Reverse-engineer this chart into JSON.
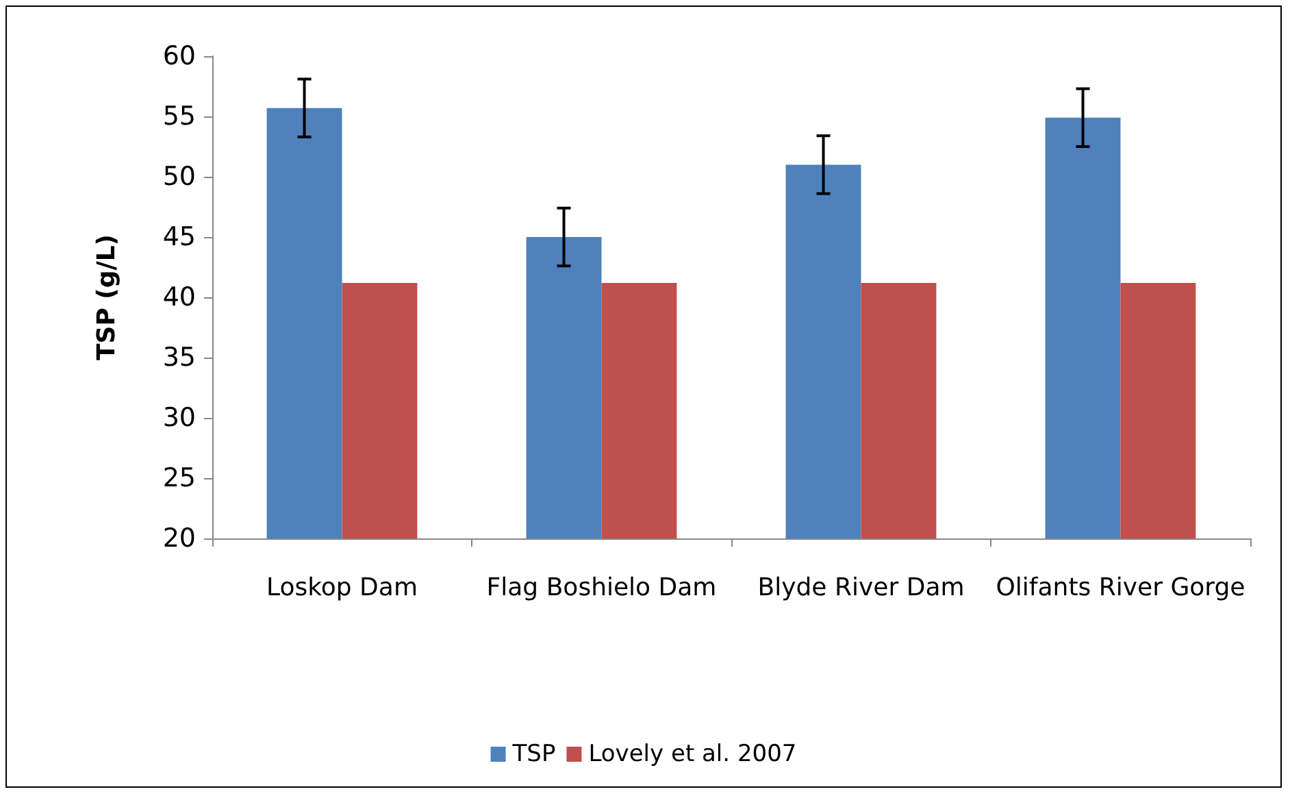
{
  "chart_data": {
    "type": "bar",
    "ylabel": "TSP (g/L)",
    "categories": [
      "Loskop Dam",
      "Flag Boshielo Dam",
      "Blyde River Dam",
      "Olifants River Gorge"
    ],
    "series": [
      {
        "name": "TSP",
        "color": "#4f81bd",
        "values": [
          55.7,
          45.0,
          51.0,
          54.9
        ],
        "errors": [
          2.4,
          2.4,
          2.4,
          2.4
        ]
      },
      {
        "name": "Lovely et al. 2007",
        "color": "#c0504d",
        "values": [
          41.2,
          41.2,
          41.2,
          41.2
        ]
      }
    ],
    "ylim": [
      20,
      60
    ],
    "yticks": [
      20,
      25,
      30,
      35,
      40,
      45,
      50,
      55,
      60
    ],
    "grid": false,
    "legend": "bottom"
  }
}
